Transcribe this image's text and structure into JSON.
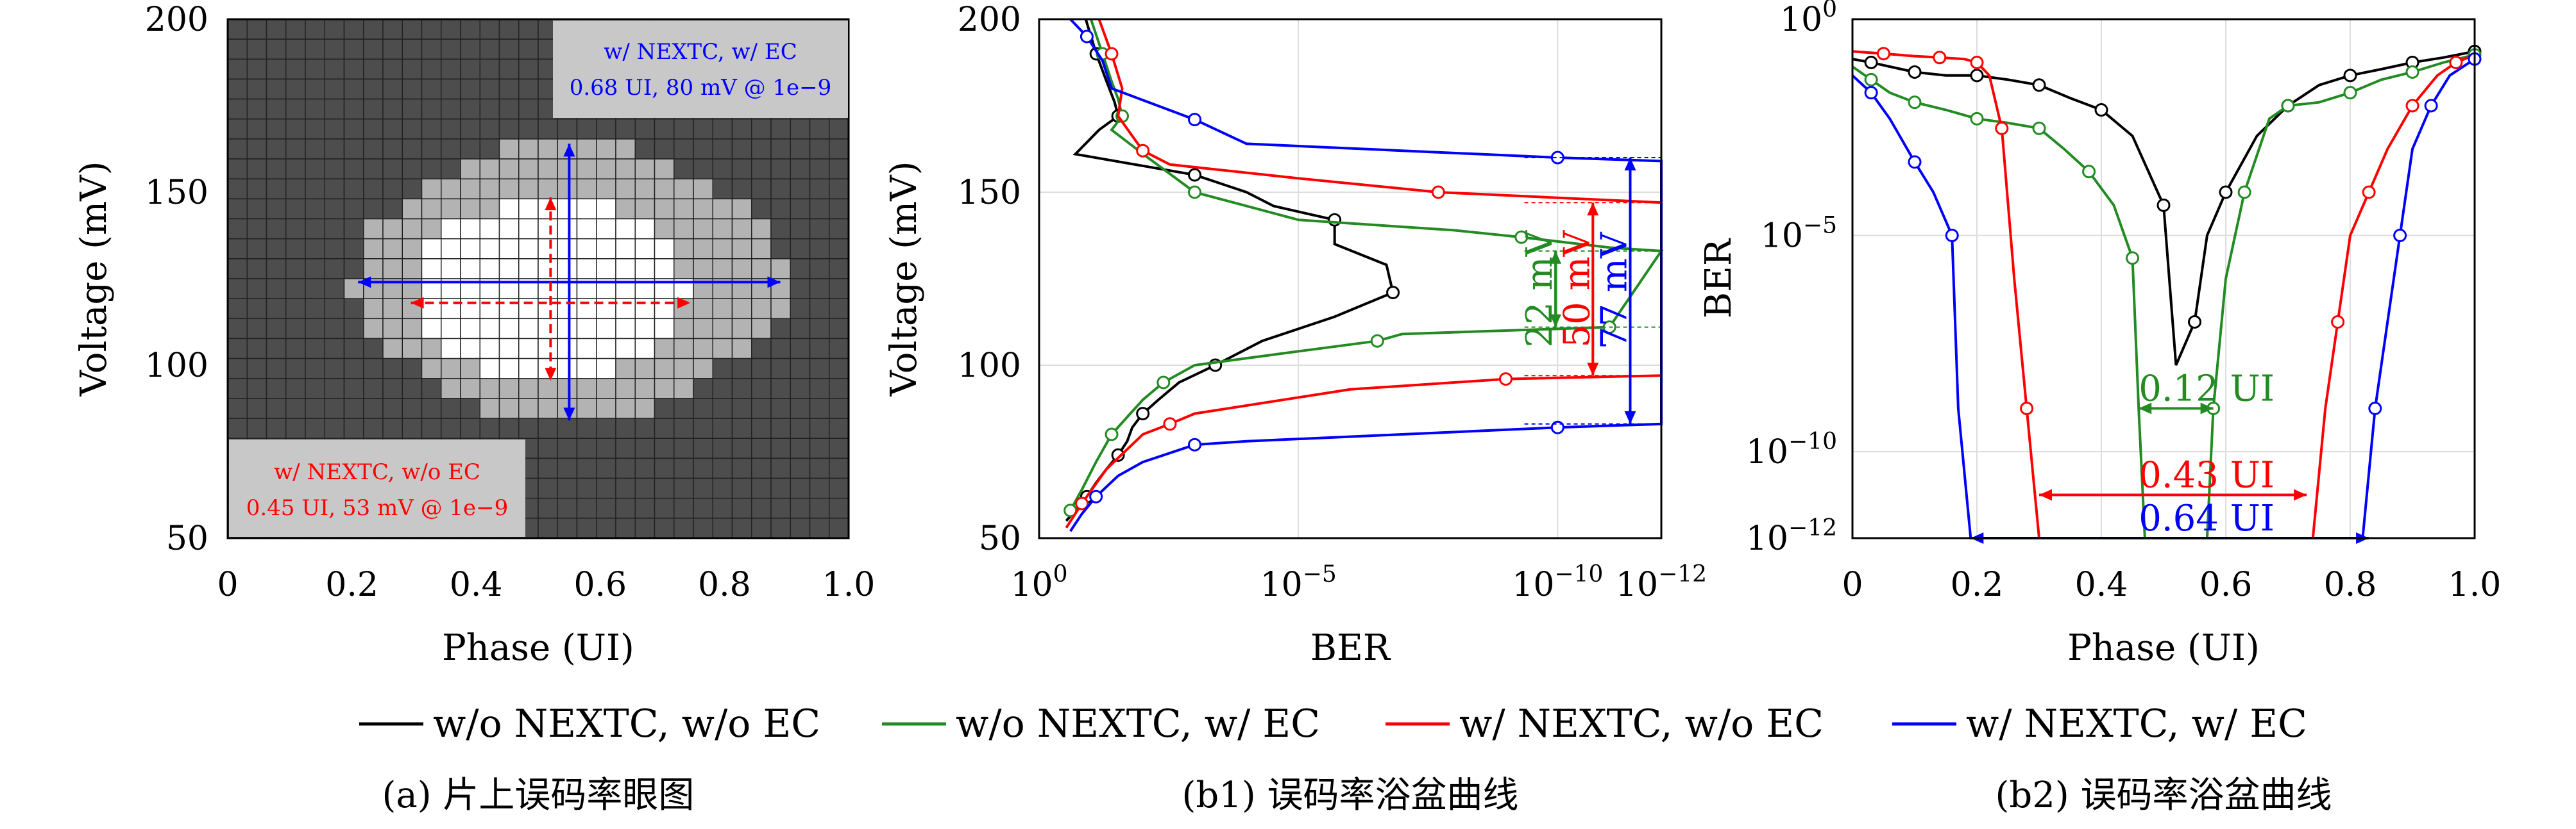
{
  "chart_data": [
    {
      "id": "a",
      "type": "heatmap",
      "caption": "(a) 片上误码率眼图",
      "xlabel": "Phase (UI)",
      "ylabel": "Voltage (mV)",
      "xlim": [
        0,
        1.0
      ],
      "ylim": [
        50,
        200
      ],
      "xticks": [
        "0",
        "0.2",
        "0.4",
        "0.6",
        "0.8",
        "1.0"
      ],
      "yticks": [
        "50",
        "100",
        "150",
        "200"
      ],
      "grid": {
        "cols": 32,
        "rows": 26
      },
      "region_colors": {
        "outer": "#4d4d4d",
        "eye_nextc": "#b3b3b3",
        "eye_inner": "#ffffff"
      },
      "eye_nextc_ec": {
        "center_x": 0.55,
        "center_v": 124,
        "width_ui": 0.68,
        "height_mv": 80
      },
      "eye_nextc_noec": {
        "center_x": 0.52,
        "center_v": 122,
        "width_ui": 0.45,
        "height_mv": 53
      },
      "box_ec": {
        "line1": "w/ NEXTC, w/ EC",
        "line2": "0.68 UI, 80 mV @ 1e−9",
        "color": "#0000ff"
      },
      "box_noec": {
        "line1": "w/ NEXTC, w/o EC",
        "line2": "0.45 UI, 53 mV @ 1e−9",
        "color": "#ff0000"
      }
    },
    {
      "id": "b1",
      "type": "line",
      "caption": "(b1) 误码率浴盆曲线",
      "xlabel": "BER",
      "ylabel": "Voltage (mV)",
      "x_scale": "log",
      "x_reversed": true,
      "xlim": [
        1,
        1e-12
      ],
      "ylim": [
        50,
        200
      ],
      "xticks": [
        {
          "value": 1,
          "label": "10^0"
        },
        {
          "value": 1e-05,
          "label": "10^−5"
        },
        {
          "value": 1e-10,
          "label": "10^−10"
        },
        {
          "value": 1e-12,
          "label": "10^−12"
        }
      ],
      "yticks": [
        "50",
        "100",
        "150",
        "200"
      ],
      "grid": true,
      "series": [
        {
          "name": "w/o NEXTC, w/o EC",
          "color": "#000000",
          "x": [
            0.126,
            0.079,
            0.05,
            0.035,
            0.03,
            0.07,
            0.2,
            0.001,
            0.0001,
            3e-05,
            2e-06,
            2e-06,
            2e-07,
            1.5e-07,
            2e-06,
            5e-05,
            0.0004,
            0.002,
            0.005,
            0.01,
            0.016,
            0.02,
            0.03,
            0.05,
            0.08,
            0.12,
            0.2,
            0.3
          ],
          "y": [
            200,
            190,
            182,
            176,
            172,
            168,
            161,
            155,
            150,
            146,
            142,
            135,
            129,
            121,
            114,
            107,
            100,
            95,
            90,
            86,
            82,
            78,
            74,
            70,
            66,
            62,
            58,
            55
          ]
        },
        {
          "name": "w/o NEXTC, w/ EC",
          "color": "#228B22",
          "x": [
            0.1,
            0.06,
            0.04,
            0.03,
            0.025,
            0.04,
            0.008,
            0.001,
            1e-05,
            1e-08,
            5e-10,
            1e-11,
            1e-12,
            1e-11,
            1e-09,
            1e-07,
            3e-07,
            1e-05,
            0.001,
            0.004,
            0.01,
            0.02,
            0.04,
            0.08,
            0.15,
            0.25
          ],
          "y": [
            200,
            190,
            182,
            177,
            172,
            168,
            160,
            150,
            142,
            139,
            137,
            134,
            133,
            111,
            110,
            109,
            107,
            104,
            100,
            95,
            90,
            85,
            80,
            72,
            64,
            58
          ]
        },
        {
          "name": "w/ NEXTC, w/o EC",
          "color": "#ff0000",
          "x": [
            0.07,
            0.04,
            0.025,
            0.03,
            0.01,
            0.003,
            1e-05,
            2e-08,
            1e-12,
            1e-12,
            1e-09,
            1e-06,
            0.001,
            0.003,
            0.01,
            0.05,
            0.15,
            0.3
          ],
          "y": [
            200,
            190,
            180,
            172,
            162,
            158,
            154,
            150,
            147,
            97,
            96,
            93,
            86,
            83,
            80,
            70,
            60,
            53
          ]
        },
        {
          "name": "w/ NEXTC, w/ EC",
          "color": "#0000ff",
          "x": [
            0.25,
            0.12,
            0.06,
            0.04,
            0.001,
            0.0001,
            1e-07,
            1e-10,
            1e-12,
            1e-12,
            1e-10,
            1e-07,
            0.0001,
            0.001,
            0.01,
            0.03,
            0.08,
            0.15,
            0.25
          ],
          "y": [
            200,
            195,
            188,
            180,
            171,
            164,
            162,
            160,
            159,
            83,
            82,
            80,
            78,
            77,
            72,
            68,
            62,
            57,
            52
          ]
        }
      ],
      "annotations": [
        {
          "label": "22 mV",
          "color": "#228B22"
        },
        {
          "label": "50 mV",
          "color": "#ff0000"
        },
        {
          "label": "77 mV",
          "color": "#0000ff"
        }
      ]
    },
    {
      "id": "b2",
      "type": "line",
      "caption": "(b2) 误码率浴盆曲线",
      "xlabel": "Phase (UI)",
      "ylabel": "BER",
      "y_scale": "log",
      "xlim": [
        0,
        1.0
      ],
      "ylim": [
        1e-12,
        1
      ],
      "xticks": [
        "0",
        "0.2",
        "0.4",
        "0.6",
        "0.8",
        "1.0"
      ],
      "yticks": [
        {
          "value": 1,
          "label": "10^0"
        },
        {
          "value": 1e-05,
          "label": "10^−5"
        },
        {
          "value": 1e-10,
          "label": "10^−10"
        },
        {
          "value": 1e-12,
          "label": "10^−12"
        }
      ],
      "grid": true,
      "series": [
        {
          "name": "w/o NEXTC, w/o EC",
          "color": "#000000",
          "x": [
            0,
            0.03,
            0.06,
            0.1,
            0.15,
            0.2,
            0.25,
            0.3,
            0.35,
            0.4,
            0.45,
            0.5,
            0.52,
            0.55,
            0.57,
            0.6,
            0.65,
            0.7,
            0.75,
            0.8,
            0.85,
            0.9,
            0.95,
            1.0
          ],
          "x_spacing_note": "",
          "y": [
            0.12,
            0.1,
            0.08,
            0.06,
            0.05,
            0.05,
            0.04,
            0.03,
            0.015,
            0.008,
            0.002,
            5e-05,
            1e-08,
            1e-07,
            1e-05,
            0.0001,
            0.002,
            0.01,
            0.03,
            0.05,
            0.07,
            0.1,
            0.13,
            0.18
          ]
        },
        {
          "name": "w/o NEXTC, w/ EC",
          "color": "#228B22",
          "x": [
            0,
            0.03,
            0.06,
            0.1,
            0.15,
            0.2,
            0.25,
            0.3,
            0.34,
            0.38,
            0.42,
            0.45,
            0.46,
            0.47,
            0.57,
            0.58,
            0.6,
            0.63,
            0.67,
            0.7,
            0.75,
            0.8,
            0.85,
            0.9,
            0.95,
            1.0
          ],
          "y": [
            0.08,
            0.04,
            0.02,
            0.012,
            0.008,
            0.005,
            0.004,
            0.003,
            0.001,
            0.0003,
            5e-05,
            3e-06,
            1e-09,
            1e-12,
            1e-12,
            1e-09,
            1e-06,
            0.0001,
            0.005,
            0.01,
            0.012,
            0.02,
            0.04,
            0.06,
            0.1,
            0.15
          ]
        },
        {
          "name": "w/ NEXTC, w/o EC",
          "color": "#ff0000",
          "x": [
            0,
            0.05,
            0.1,
            0.14,
            0.18,
            0.2,
            0.22,
            0.24,
            0.26,
            0.28,
            0.3,
            0.74,
            0.76,
            0.78,
            0.8,
            0.83,
            0.86,
            0.9,
            0.94,
            0.97,
            1.0
          ],
          "y": [
            0.18,
            0.16,
            0.14,
            0.13,
            0.12,
            0.1,
            0.05,
            0.003,
            1e-06,
            1e-09,
            1e-12,
            1e-12,
            1e-09,
            1e-07,
            1e-05,
            0.0001,
            0.001,
            0.01,
            0.05,
            0.1,
            0.15
          ]
        },
        {
          "name": "w/ NEXTC, w/ EC",
          "color": "#0000ff",
          "x": [
            0,
            0.03,
            0.06,
            0.1,
            0.13,
            0.16,
            0.17,
            0.19,
            0.82,
            0.84,
            0.86,
            0.88,
            0.9,
            0.93,
            0.96,
            1.0
          ],
          "y": [
            0.05,
            0.02,
            0.005,
            0.0005,
            0.0001,
            1e-05,
            1e-09,
            1e-12,
            1e-12,
            1e-09,
            1e-07,
            1e-05,
            0.001,
            0.01,
            0.05,
            0.12
          ]
        }
      ],
      "annotations": [
        {
          "label": "0.12 UI",
          "color": "#228B22"
        },
        {
          "label": "0.43 UI",
          "color": "#ff0000"
        },
        {
          "label": "0.64 UI",
          "color": "#0000ff"
        }
      ]
    }
  ],
  "legend": [
    {
      "label": "w/o NEXTC, w/o EC",
      "color": "#000000"
    },
    {
      "label": "w/o NEXTC, w/ EC",
      "color": "#228B22"
    },
    {
      "label": "w/ NEXTC, w/o EC",
      "color": "#ff0000"
    },
    {
      "label": "w/ NEXTC, w/ EC",
      "color": "#0000ff"
    }
  ]
}
